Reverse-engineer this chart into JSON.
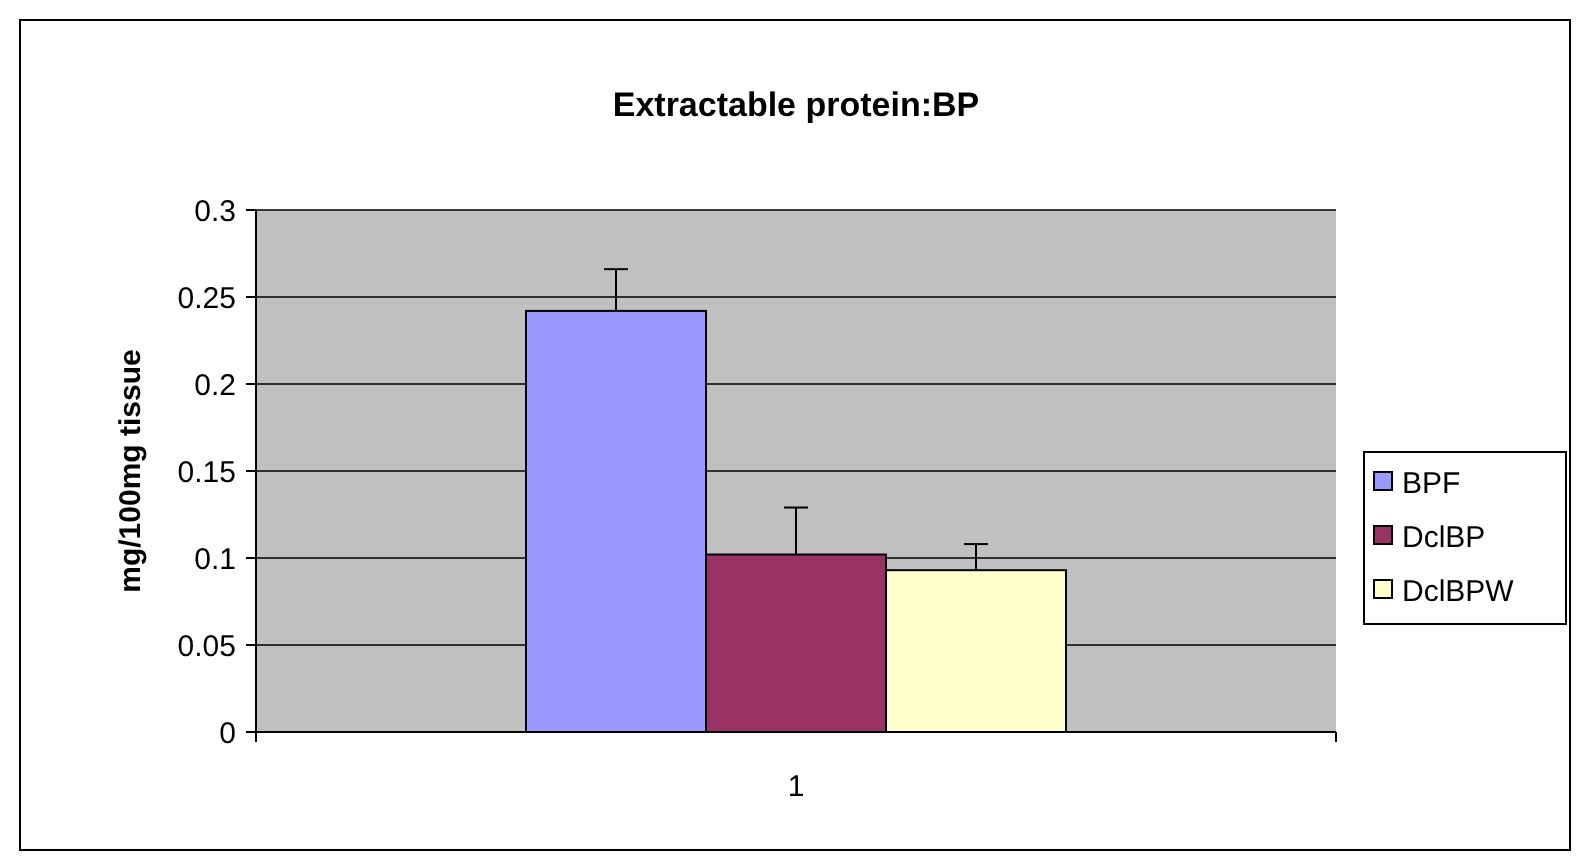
{
  "chart_data": {
    "type": "bar",
    "title": "Extractable protein:BP",
    "ylabel": "mg/100mg tissue",
    "categories": [
      "1"
    ],
    "series": [
      {
        "name": "BPF",
        "color": "#9999ff",
        "values": [
          0.242
        ],
        "errors": [
          [
            0.242,
            0.266
          ]
        ]
      },
      {
        "name": "DclBP",
        "color": "#993366",
        "values": [
          0.102
        ],
        "errors": [
          [
            0.102,
            0.129
          ]
        ]
      },
      {
        "name": "DclBPW",
        "color": "#ffffcc",
        "values": [
          0.093
        ],
        "errors": [
          [
            0.093,
            0.108
          ]
        ]
      }
    ],
    "ylim": [
      0,
      0.3
    ],
    "yticks": [
      0,
      0.05,
      0.1,
      0.15,
      0.2,
      0.25,
      0.3
    ],
    "grid": "y",
    "legend": "right"
  }
}
